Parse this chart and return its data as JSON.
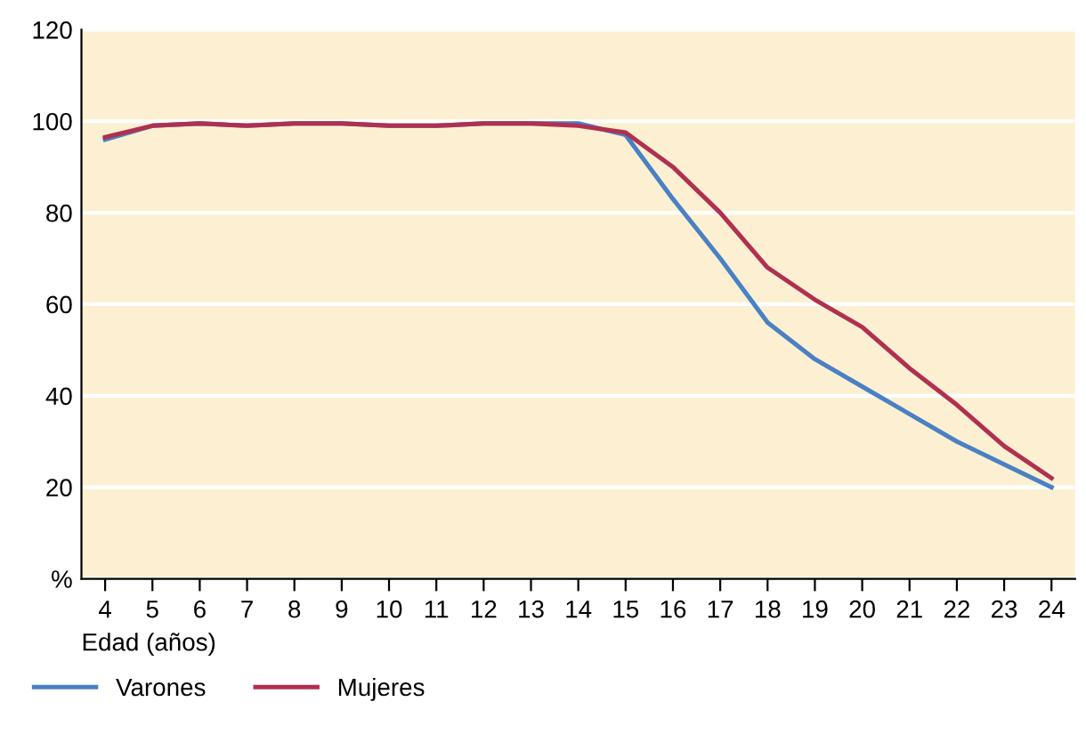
{
  "chart_data": {
    "type": "line",
    "xlabel": "Edad (años)",
    "x": [
      4,
      5,
      6,
      7,
      8,
      9,
      10,
      11,
      12,
      13,
      14,
      15,
      16,
      17,
      18,
      19,
      20,
      21,
      22,
      23,
      24
    ],
    "series": [
      {
        "name": "Varones",
        "color": "#4a80c4",
        "values": [
          96,
          99,
          99.5,
          99,
          99.5,
          99.5,
          99,
          99,
          99.5,
          99.5,
          99.5,
          97,
          83,
          70,
          56,
          48,
          42,
          36,
          30,
          25,
          20
        ]
      },
      {
        "name": "Mujeres",
        "color": "#b03050",
        "values": [
          96.5,
          99,
          99.5,
          99,
          99.5,
          99.5,
          99,
          99,
          99.5,
          99.5,
          99,
          97.5,
          90,
          80,
          68,
          61,
          55,
          46,
          38,
          29,
          22
        ]
      }
    ],
    "xlim": [
      3.5,
      24.5
    ],
    "xticks": [
      4,
      5,
      6,
      7,
      8,
      9,
      10,
      11,
      12,
      13,
      14,
      15,
      16,
      17,
      18,
      19,
      20,
      21,
      22,
      23,
      24
    ],
    "ylim": [
      0,
      120
    ],
    "yticks": [
      {
        "value": 0,
        "label": "%"
      },
      20,
      40,
      60,
      80,
      100,
      120
    ],
    "grid": "y",
    "legend": "bottom left",
    "line_style": "solid",
    "marker": "none"
  }
}
